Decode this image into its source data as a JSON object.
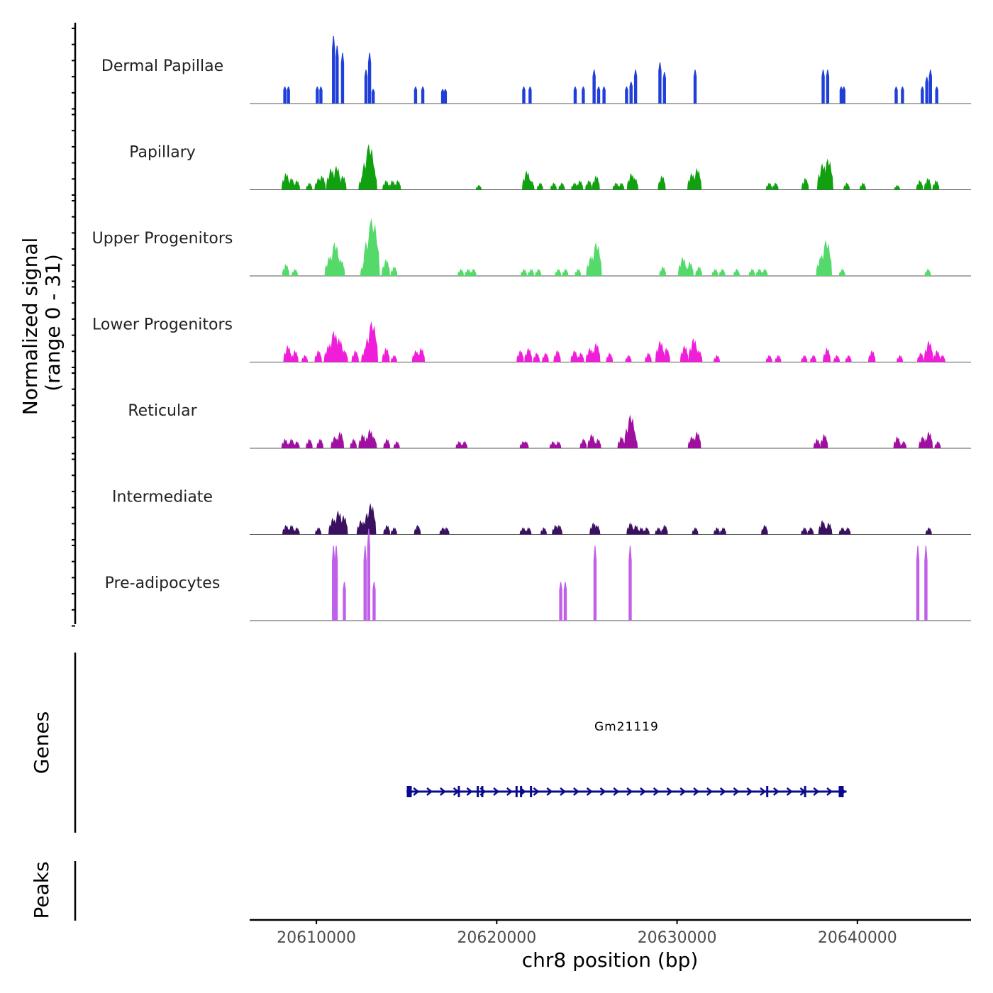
{
  "chart_data": {
    "type": "area",
    "title": "",
    "ylabel_line1": "Normalized signal",
    "ylabel_line2": "(range 0 - 31)",
    "yrange": [
      0,
      31
    ],
    "xlabel": "chr8 position (bp)",
    "xlim": [
      20606300,
      20646300
    ],
    "xticks": [
      20610000,
      20620000,
      20630000,
      20640000
    ],
    "xtick_labels": [
      "20610000",
      "20620000",
      "20630000",
      "20640000"
    ],
    "tracks": [
      {
        "name": "Dermal Papillae",
        "color": "#1f3fd8",
        "mode": "spiky",
        "peaks": [
          [
            20608250,
            7
          ],
          [
            20608450,
            7
          ],
          [
            20610050,
            7
          ],
          [
            20610250,
            7
          ],
          [
            20610950,
            28
          ],
          [
            20611150,
            24
          ],
          [
            20611450,
            21
          ],
          [
            20612750,
            14
          ],
          [
            20612950,
            21
          ],
          [
            20613150,
            6
          ],
          [
            20615500,
            7
          ],
          [
            20615900,
            7
          ],
          [
            20617000,
            6
          ],
          [
            20617150,
            6
          ],
          [
            20621500,
            7
          ],
          [
            20621850,
            7
          ],
          [
            20624350,
            7
          ],
          [
            20624800,
            7
          ],
          [
            20625400,
            14
          ],
          [
            20625650,
            7
          ],
          [
            20625950,
            7
          ],
          [
            20627200,
            7
          ],
          [
            20627450,
            9
          ],
          [
            20627700,
            14
          ],
          [
            20629050,
            17
          ],
          [
            20629300,
            13
          ],
          [
            20631000,
            14
          ],
          [
            20638100,
            14
          ],
          [
            20638350,
            14
          ],
          [
            20639100,
            7
          ],
          [
            20639250,
            7
          ],
          [
            20642150,
            7
          ],
          [
            20642500,
            7
          ],
          [
            20643600,
            7
          ],
          [
            20643850,
            11
          ],
          [
            20644050,
            14
          ],
          [
            20644400,
            7
          ]
        ]
      },
      {
        "name": "Papillary",
        "color": "#10a010",
        "mode": "broad",
        "peaks": [
          [
            20608300,
            7
          ],
          [
            20608600,
            5
          ],
          [
            20608900,
            4
          ],
          [
            20609600,
            3
          ],
          [
            20610100,
            5
          ],
          [
            20610300,
            6
          ],
          [
            20610800,
            9
          ],
          [
            20611100,
            10
          ],
          [
            20611450,
            6
          ],
          [
            20612550,
            6
          ],
          [
            20612900,
            19
          ],
          [
            20613100,
            10
          ],
          [
            20613850,
            4
          ],
          [
            20614200,
            4
          ],
          [
            20614500,
            4
          ],
          [
            20619000,
            2
          ],
          [
            20621650,
            8
          ],
          [
            20621900,
            4
          ],
          [
            20622400,
            3
          ],
          [
            20623150,
            3
          ],
          [
            20623600,
            3
          ],
          [
            20624300,
            3
          ],
          [
            20624600,
            4
          ],
          [
            20625100,
            4
          ],
          [
            20625500,
            6
          ],
          [
            20626600,
            3
          ],
          [
            20626900,
            3
          ],
          [
            20627450,
            7
          ],
          [
            20627650,
            5
          ],
          [
            20629150,
            6
          ],
          [
            20630800,
            7
          ],
          [
            20631100,
            9
          ],
          [
            20635100,
            3
          ],
          [
            20635450,
            3
          ],
          [
            20637100,
            5
          ],
          [
            20638050,
            11
          ],
          [
            20638350,
            13
          ],
          [
            20639400,
            3
          ],
          [
            20640300,
            3
          ],
          [
            20642200,
            2
          ],
          [
            20643450,
            4
          ],
          [
            20643900,
            5
          ],
          [
            20644350,
            4
          ]
        ]
      },
      {
        "name": "Upper Progenitors",
        "color": "#55d96a",
        "mode": "broad",
        "peaks": [
          [
            20608300,
            5
          ],
          [
            20608800,
            3
          ],
          [
            20610700,
            8
          ],
          [
            20611000,
            14
          ],
          [
            20611350,
            7
          ],
          [
            20612650,
            6
          ],
          [
            20613050,
            24
          ],
          [
            20613850,
            7
          ],
          [
            20614300,
            4
          ],
          [
            20618000,
            3
          ],
          [
            20618400,
            3
          ],
          [
            20618700,
            3
          ],
          [
            20621500,
            3
          ],
          [
            20621900,
            3
          ],
          [
            20622300,
            3
          ],
          [
            20623400,
            3
          ],
          [
            20623800,
            3
          ],
          [
            20624500,
            3
          ],
          [
            20625200,
            8
          ],
          [
            20625500,
            14
          ],
          [
            20629200,
            4
          ],
          [
            20630300,
            8
          ],
          [
            20630700,
            6
          ],
          [
            20631200,
            4
          ],
          [
            20632100,
            3
          ],
          [
            20632500,
            3
          ],
          [
            20633300,
            3
          ],
          [
            20634150,
            3
          ],
          [
            20634550,
            3
          ],
          [
            20634850,
            3
          ],
          [
            20637950,
            8
          ],
          [
            20638250,
            15
          ],
          [
            20639150,
            3
          ],
          [
            20643900,
            3
          ]
        ]
      },
      {
        "name": "Lower Progenitors",
        "color": "#f01ed8",
        "mode": "broad",
        "peaks": [
          [
            20608400,
            7
          ],
          [
            20608800,
            5
          ],
          [
            20609350,
            3
          ],
          [
            20610100,
            5
          ],
          [
            20610650,
            7
          ],
          [
            20610950,
            13
          ],
          [
            20611250,
            10
          ],
          [
            20611550,
            5
          ],
          [
            20612150,
            5
          ],
          [
            20612700,
            6
          ],
          [
            20613050,
            17
          ],
          [
            20613850,
            6
          ],
          [
            20614300,
            3
          ],
          [
            20615500,
            5
          ],
          [
            20615800,
            6
          ],
          [
            20621300,
            5
          ],
          [
            20621750,
            6
          ],
          [
            20622200,
            4
          ],
          [
            20622700,
            4
          ],
          [
            20623350,
            5
          ],
          [
            20624300,
            5
          ],
          [
            20624650,
            4
          ],
          [
            20625150,
            6
          ],
          [
            20625500,
            8
          ],
          [
            20626250,
            4
          ],
          [
            20627300,
            3
          ],
          [
            20628400,
            4
          ],
          [
            20629050,
            9
          ],
          [
            20629400,
            6
          ],
          [
            20630400,
            7
          ],
          [
            20630900,
            10
          ],
          [
            20631200,
            5
          ],
          [
            20632200,
            3
          ],
          [
            20635100,
            3
          ],
          [
            20635600,
            3
          ],
          [
            20637050,
            3
          ],
          [
            20637550,
            3
          ],
          [
            20638300,
            6
          ],
          [
            20638850,
            3
          ],
          [
            20639500,
            3
          ],
          [
            20640800,
            5
          ],
          [
            20642350,
            3
          ],
          [
            20643500,
            4
          ],
          [
            20643950,
            9
          ],
          [
            20644400,
            5
          ],
          [
            20644700,
            3
          ]
        ]
      },
      {
        "name": "Reticular",
        "color": "#a010a0",
        "mode": "broad",
        "peaks": [
          [
            20608250,
            4
          ],
          [
            20608600,
            4
          ],
          [
            20608900,
            3
          ],
          [
            20609600,
            4
          ],
          [
            20610200,
            4
          ],
          [
            20611000,
            5
          ],
          [
            20611300,
            7
          ],
          [
            20612050,
            4
          ],
          [
            20612550,
            6
          ],
          [
            20612950,
            8
          ],
          [
            20613150,
            5
          ],
          [
            20613900,
            4
          ],
          [
            20614450,
            3
          ],
          [
            20617900,
            3
          ],
          [
            20618200,
            3
          ],
          [
            20621450,
            3
          ],
          [
            20621600,
            3
          ],
          [
            20623100,
            3
          ],
          [
            20623400,
            3
          ],
          [
            20624800,
            4
          ],
          [
            20625250,
            6
          ],
          [
            20625600,
            4
          ],
          [
            20626900,
            5
          ],
          [
            20627400,
            14
          ],
          [
            20627600,
            6
          ],
          [
            20630800,
            5
          ],
          [
            20631100,
            7
          ],
          [
            20637750,
            4
          ],
          [
            20638150,
            6
          ],
          [
            20642200,
            5
          ],
          [
            20642550,
            3
          ],
          [
            20643600,
            5
          ],
          [
            20643950,
            7
          ],
          [
            20644450,
            3
          ]
        ]
      },
      {
        "name": "Intermediate",
        "color": "#3a1060",
        "mode": "broad",
        "peaks": [
          [
            20608300,
            4
          ],
          [
            20608600,
            4
          ],
          [
            20608900,
            3
          ],
          [
            20610100,
            3
          ],
          [
            20610900,
            7
          ],
          [
            20611200,
            10
          ],
          [
            20611500,
            8
          ],
          [
            20612450,
            6
          ],
          [
            20612800,
            9
          ],
          [
            20613000,
            13
          ],
          [
            20613900,
            4
          ],
          [
            20614300,
            3
          ],
          [
            20615600,
            4
          ],
          [
            20617000,
            3
          ],
          [
            20617200,
            3
          ],
          [
            20621450,
            3
          ],
          [
            20621750,
            3
          ],
          [
            20622600,
            3
          ],
          [
            20623250,
            4
          ],
          [
            20623450,
            4
          ],
          [
            20625350,
            5
          ],
          [
            20625550,
            4
          ],
          [
            20627400,
            5
          ],
          [
            20627700,
            4
          ],
          [
            20628000,
            3
          ],
          [
            20628300,
            3
          ],
          [
            20628950,
            3
          ],
          [
            20629300,
            4
          ],
          [
            20631000,
            3
          ],
          [
            20632200,
            3
          ],
          [
            20632550,
            3
          ],
          [
            20634850,
            4
          ],
          [
            20637050,
            3
          ],
          [
            20637400,
            3
          ],
          [
            20638050,
            6
          ],
          [
            20638400,
            5
          ],
          [
            20639150,
            3
          ],
          [
            20639450,
            3
          ],
          [
            20643950,
            3
          ]
        ]
      },
      {
        "name": "Pre-adipocytes",
        "color": "#c060e8",
        "mode": "spiky",
        "peaks": [
          [
            20610950,
            31
          ],
          [
            20611100,
            31
          ],
          [
            20611550,
            16
          ],
          [
            20612700,
            31
          ],
          [
            20612900,
            38
          ],
          [
            20613200,
            16
          ],
          [
            20623550,
            16
          ],
          [
            20623800,
            16
          ],
          [
            20625450,
            31
          ],
          [
            20627400,
            31
          ],
          [
            20643350,
            31
          ],
          [
            20643800,
            31
          ]
        ]
      }
    ],
    "genes": [
      {
        "name": "Gm21119",
        "start": 20615000,
        "end": 20639400,
        "strand": "+",
        "exons": [
          20615150,
          20617900,
          20618950,
          20619200,
          20621100,
          20621350,
          20621900,
          20635000,
          20637100,
          20639100
        ]
      }
    ],
    "peaks_track_label": "Peaks",
    "genes_track_label": "Genes"
  }
}
